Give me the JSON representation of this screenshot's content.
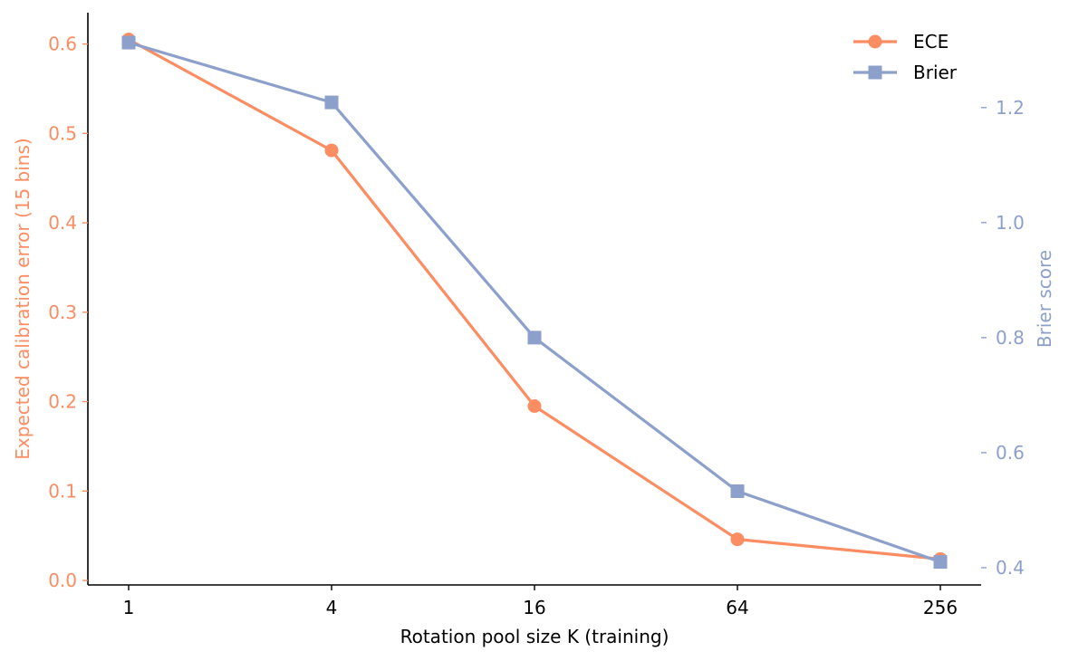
{
  "chart_data": {
    "type": "line",
    "x": [
      1,
      4,
      16,
      64,
      256
    ],
    "x_tick_labels": [
      "1",
      "4",
      "16",
      "64",
      "256"
    ],
    "x_scale": "log2",
    "xlabel": "Rotation pool size K (training)",
    "y_left": {
      "label": "Expected calibration error (15 bins)",
      "ticks": [
        "0.0",
        "0.1",
        "0.2",
        "0.3",
        "0.4",
        "0.5",
        "0.6"
      ],
      "ylim": [
        -0.005,
        0.635
      ]
    },
    "y_right": {
      "label": "Brier score",
      "ticks": [
        "0.4",
        "0.6",
        "0.8",
        "1.0",
        "1.2"
      ],
      "ylim": [
        0.37,
        1.365
      ]
    },
    "series": [
      {
        "name": "ECE",
        "axis": "left",
        "marker": "circle",
        "color": "#fc8d62",
        "values": [
          0.605,
          0.481,
          0.195,
          0.046,
          0.024
        ]
      },
      {
        "name": "Brier",
        "axis": "right",
        "marker": "square",
        "color": "#8da0cb",
        "values": [
          1.313,
          1.209,
          0.8,
          0.533,
          0.41
        ]
      }
    ],
    "legend_position": "top-right",
    "grid": false
  }
}
